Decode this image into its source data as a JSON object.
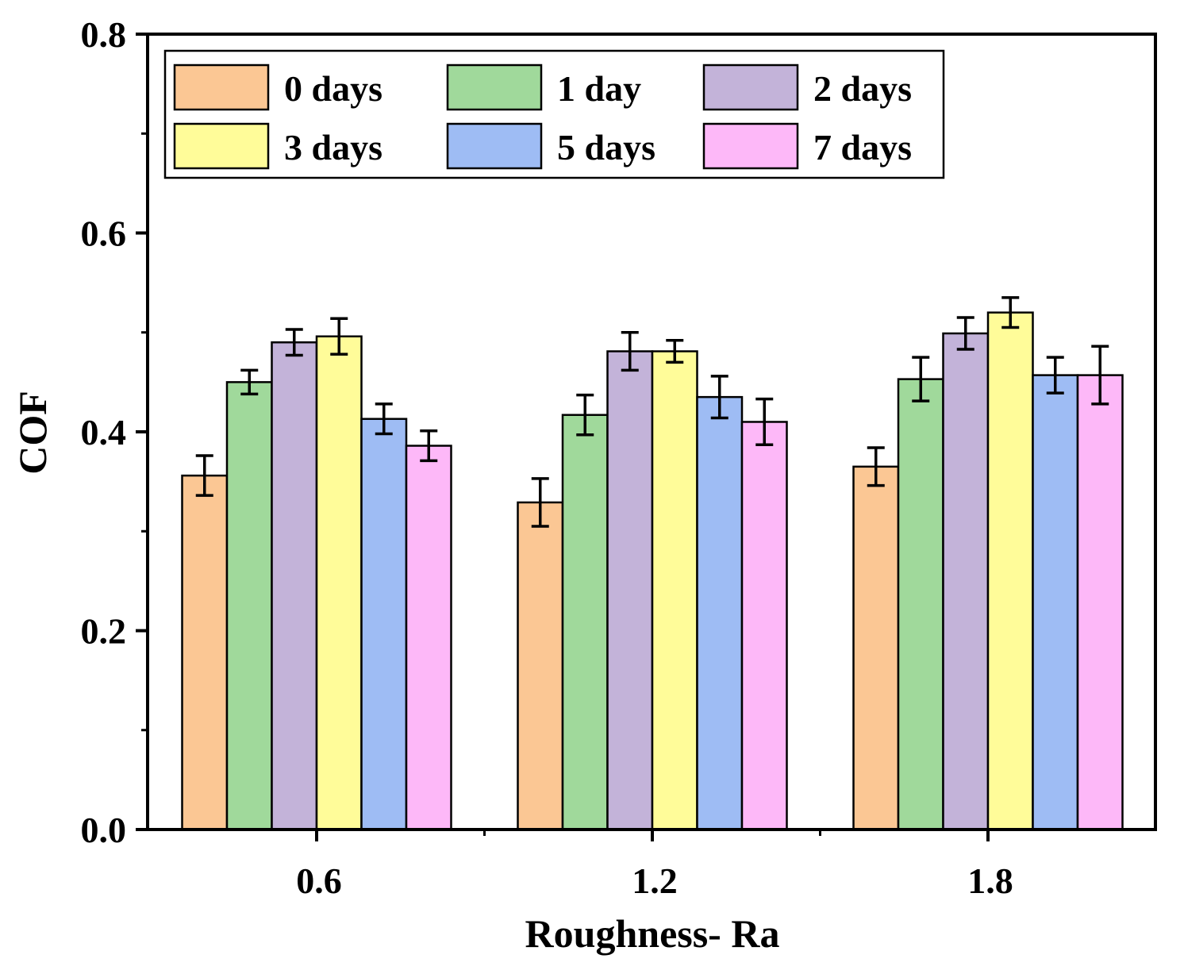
{
  "chart_data": {
    "type": "bar",
    "xlabel": "Roughness- Ra",
    "ylabel": "COF",
    "ylim": [
      0,
      0.8
    ],
    "yticks": [
      "0.0",
      "0.2",
      "0.4",
      "0.6",
      "0.8"
    ],
    "categories": [
      "0.6",
      "1.2",
      "1.8"
    ],
    "legend_position": "top-left",
    "legend_columns": 3,
    "grid": false,
    "error_bars": true,
    "series": [
      {
        "name": "0 days",
        "color": "#FBC794",
        "values": [
          0.356,
          0.329,
          0.365
        ],
        "errors": [
          0.02,
          0.024,
          0.019
        ]
      },
      {
        "name": "1 day",
        "color": "#A0D99B",
        "values": [
          0.45,
          0.417,
          0.453
        ],
        "errors": [
          0.012,
          0.02,
          0.022
        ]
      },
      {
        "name": "2 days",
        "color": "#C3B3D9",
        "values": [
          0.49,
          0.481,
          0.499
        ],
        "errors": [
          0.013,
          0.019,
          0.016
        ]
      },
      {
        "name": "3 days",
        "color": "#FFFC99",
        "values": [
          0.496,
          0.481,
          0.52
        ],
        "errors": [
          0.018,
          0.011,
          0.015
        ]
      },
      {
        "name": "5 days",
        "color": "#9EBCF4",
        "values": [
          0.413,
          0.435,
          0.457
        ],
        "errors": [
          0.015,
          0.021,
          0.018
        ]
      },
      {
        "name": "7 days",
        "color": "#FDB8F8",
        "values": [
          0.386,
          0.41,
          0.457
        ],
        "errors": [
          0.015,
          0.023,
          0.029
        ]
      }
    ]
  }
}
